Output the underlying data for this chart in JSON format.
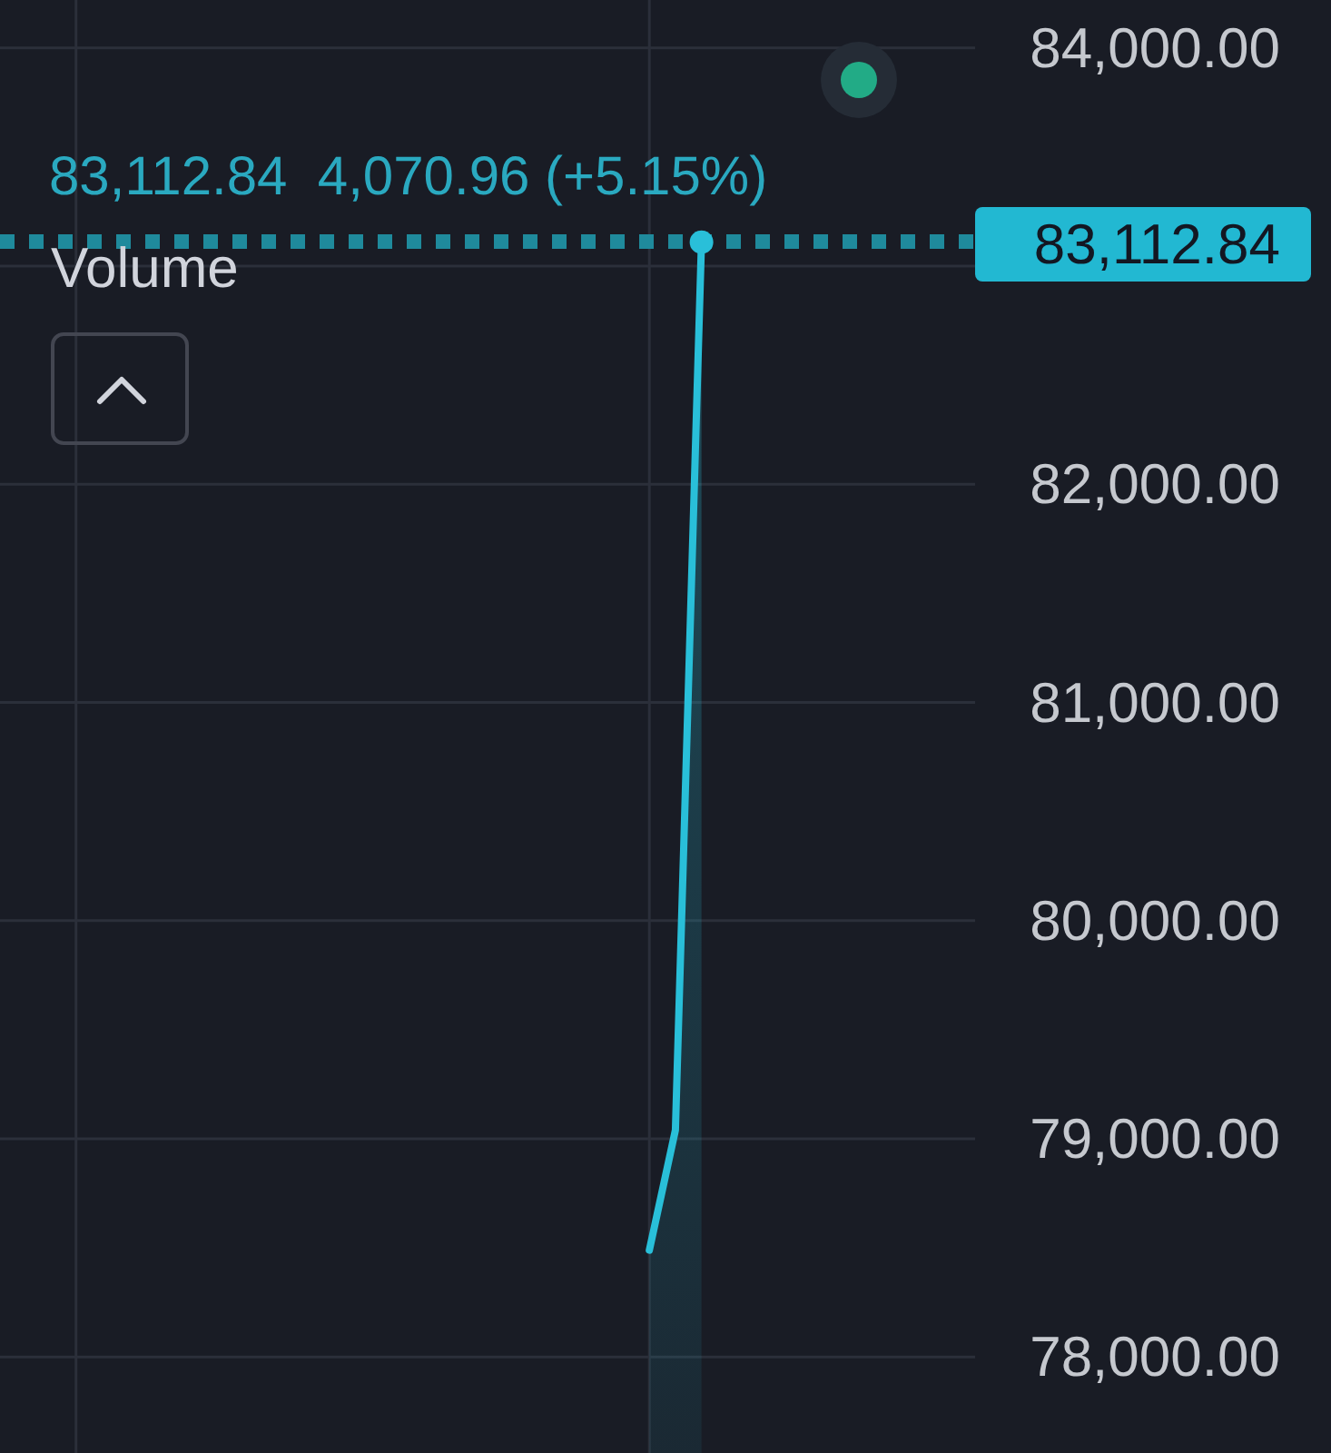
{
  "chart_data": {
    "type": "area",
    "subtitle": "83,112.84  4,070.96 (+5.15%)",
    "annotations": [
      "Volume"
    ],
    "categories": [
      null,
      null,
      null,
      null,
      null,
      null,
      null,
      null,
      null,
      null,
      null,
      null,
      null,
      null,
      null,
      null,
      null,
      null,
      null,
      null,
      null,
      null,
      null,
      null,
      null,
      null,
      null,
      null,
      null,
      null,
      null,
      null,
      null,
      null,
      null,
      null,
      null
    ],
    "series": [
      {
        "color": "#29bfd9",
        "values": [
          null,
          null,
          null,
          null,
          null,
          null,
          null,
          null,
          null,
          null,
          null,
          null,
          null,
          null,
          null,
          null,
          null,
          null,
          null,
          null,
          null,
          null,
          null,
          null,
          78490,
          79040,
          83110,
          null,
          null,
          null,
          null,
          null,
          null,
          null,
          null,
          null,
          null
        ]
      },
      {
        "type": "scatter",
        "color": "#29bfd9",
        "values": [
          null,
          null,
          null,
          null,
          null,
          null,
          null,
          null,
          null,
          null,
          null,
          null,
          null,
          null,
          null,
          null,
          null,
          null,
          null,
          null,
          null,
          null,
          null,
          null,
          null,
          null,
          83110,
          null,
          null,
          null,
          null,
          null,
          null,
          null,
          null,
          null,
          null
        ]
      }
    ],
    "ylim": [
      77560,
      84220
    ],
    "yticks": [
      {
        "value": 78000,
        "label": "78,000.00"
      },
      {
        "value": 79000,
        "label": "79,000.00"
      },
      {
        "value": 80000,
        "label": "80,000.00"
      },
      {
        "value": 81000,
        "label": "81,000.00"
      },
      {
        "value": 82000,
        "label": "82,000.00"
      },
      {
        "value": 83000,
        "label": null
      },
      {
        "value": 84000,
        "label": "84,000.00"
      }
    ],
    "grid": true,
    "ref_lines": [
      {
        "axis": "y",
        "value": 83112.84,
        "label": "83,112.84",
        "color": "#1f8a9c",
        "line_style": "dotted"
      }
    ]
  }
}
